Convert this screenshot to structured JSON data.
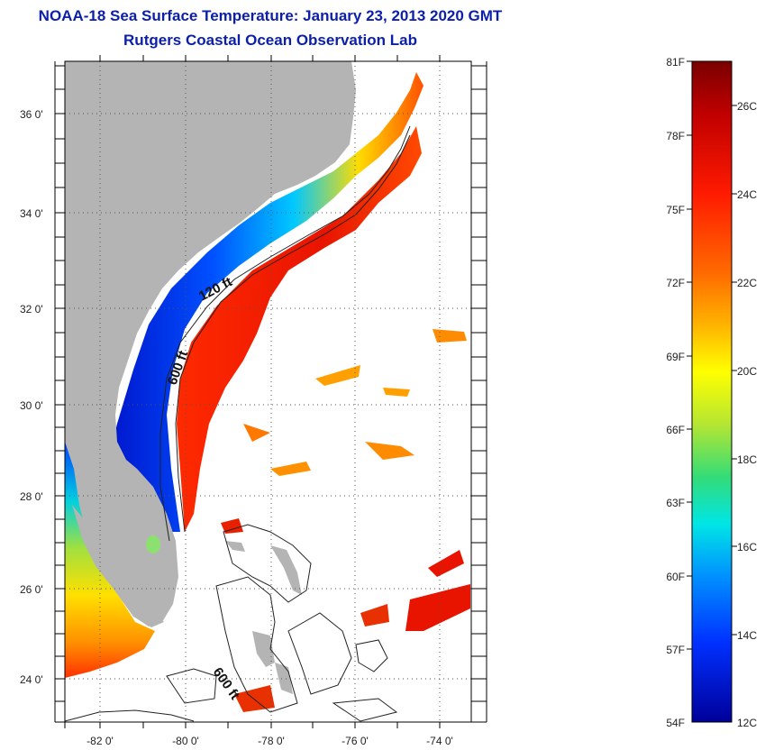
{
  "header": {
    "title": "NOAA-18 Sea Surface Temperature:  January 23, 2013 2020 GMT",
    "subtitle": "Rutgers Coastal Ocean Observation Lab"
  },
  "map": {
    "lat_labels": [
      "36 0'",
      "34 0'",
      "32 0'",
      "30 0'",
      "28 0'",
      "26 0'",
      "24 0'"
    ],
    "lon_labels": [
      "-82 0'",
      "-80 0'",
      "-78 0'",
      "-76 0'",
      "-74 0'"
    ],
    "contour_labels": [
      "120 ft",
      "600 ft",
      "600 ft"
    ],
    "land_color": "#b4b4b4"
  },
  "colorbar": {
    "f_labels": [
      "81F",
      "78F",
      "75F",
      "72F",
      "69F",
      "66F",
      "63F",
      "60F",
      "57F",
      "54F"
    ],
    "c_labels": [
      "26C",
      "24C",
      "22C",
      "20C",
      "18C",
      "16C",
      "14C",
      "12C"
    ],
    "stops": [
      "#7a0000",
      "#c00000",
      "#ff1a00",
      "#ff6a00",
      "#ffb400",
      "#ffff00",
      "#b4e632",
      "#32dc78",
      "#00e6e6",
      "#0090ff",
      "#0030ff",
      "#00009a"
    ]
  }
}
